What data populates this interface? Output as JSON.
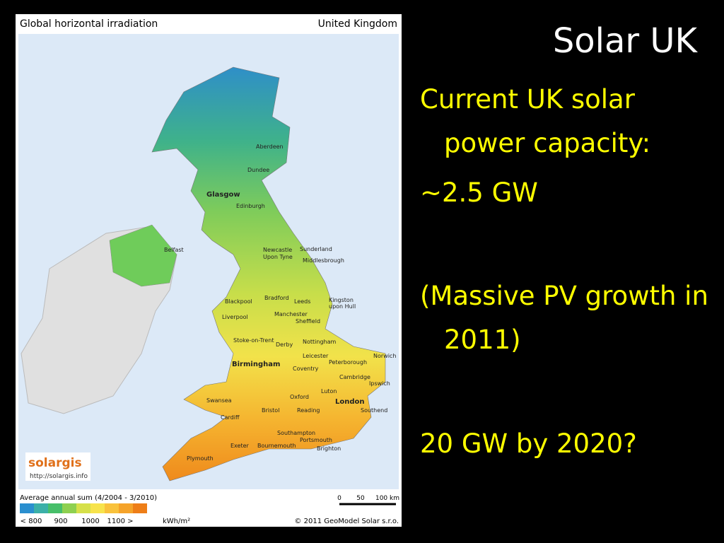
{
  "map": {
    "header_left": "Global horizontal irradiation",
    "header_right": "United Kingdom",
    "cities": [
      "Aberdeen",
      "Dundee",
      "Glasgow",
      "Edinburgh",
      "Belfast",
      "Newcastle",
      "Upon Tyne",
      "Sunderland",
      "Middlesbrough",
      "Blackpool",
      "Bradford",
      "Leeds",
      "Kingston",
      "upon Hull",
      "Liverpool",
      "Manchester",
      "Sheffield",
      "Stoke-on-Trent",
      "Derby",
      "Nottingham",
      "Leicester",
      "Norwich",
      "Peterborough",
      "Birmingham",
      "Coventry",
      "Cambridge",
      "Ipswich",
      "Luton",
      "Swansea",
      "Oxford",
      "London",
      "Southend",
      "Bristol",
      "Reading",
      "Cardiff",
      "Southampton",
      "Portsmouth",
      "Exeter",
      "Bournemouth",
      "Brighton",
      "Plymouth"
    ],
    "logo": "solargis",
    "logo_url": "http://solargis.info",
    "legend_title": "Average annual sum (4/2004 - 3/2010)",
    "legend_labels": [
      "< 800",
      "900",
      "1000",
      "1100 >"
    ],
    "legend_unit": "kWh/m²",
    "scale_labels": [
      "0",
      "50",
      "100 km"
    ],
    "copyright": "© 2011 GeoModel Solar s.r.o."
  },
  "slide": {
    "title": "Solar UK",
    "items": [
      "Current UK solar power capacity:",
      "~2.5 GW",
      "(Massive PV growth in 2011)",
      "20 GW by 2020?"
    ]
  }
}
